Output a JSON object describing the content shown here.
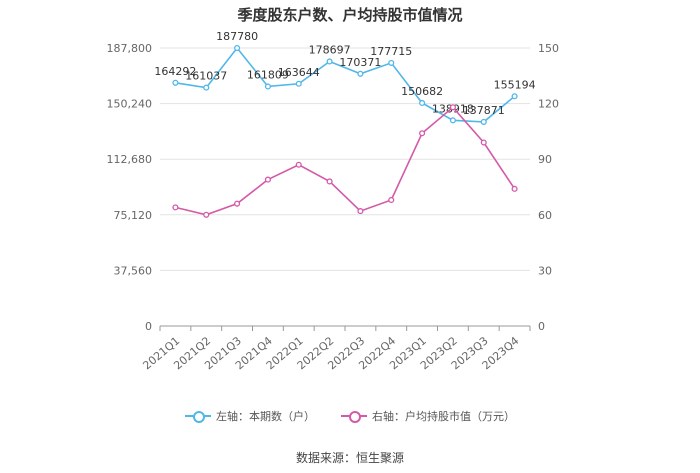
{
  "title": "季度股东户数、户均持股市值情况",
  "source": "数据来源：恒生聚源",
  "colors": {
    "left_series": "#4fb7ea",
    "right_series": "#d45aa8",
    "axis": "#999999",
    "grid": "#e3e3e3"
  },
  "chart_data": {
    "type": "line",
    "title": "季度股东户数、户均持股市值情况",
    "categories": [
      "2021Q1",
      "2021Q2",
      "2021Q3",
      "2021Q4",
      "2022Q1",
      "2022Q2",
      "2022Q3",
      "2022Q4",
      "2023Q1",
      "2023Q2",
      "2023Q3",
      "2023Q4"
    ],
    "left_axis": {
      "ylim": [
        0,
        187800
      ],
      "ticks": [
        0,
        37560,
        75120,
        112680,
        150240,
        187800
      ],
      "tick_labels": [
        "0",
        "37,560",
        "75,120",
        "112,680",
        "150,240",
        "187,800"
      ]
    },
    "right_axis": {
      "ylim": [
        0,
        150
      ],
      "ticks": [
        0,
        30,
        60,
        90,
        120,
        150
      ],
      "tick_labels": [
        "0",
        "30",
        "60",
        "90",
        "120",
        "150"
      ]
    },
    "series": [
      {
        "name": "左轴：本期数（户）",
        "axis": "left",
        "values": [
          164292,
          161037,
          187780,
          161809,
          163644,
          178697,
          170371,
          177715,
          150682,
          138918,
          137871,
          155194
        ],
        "data_labels": [
          "164292",
          "161037",
          "187780",
          "161809",
          "163644",
          "178697",
          "170371",
          "177715",
          "150682",
          "138918",
          "137871",
          "155194"
        ]
      },
      {
        "name": "右轴：户均持股市值（万元）",
        "axis": "right",
        "values": [
          64,
          60,
          66,
          79,
          87,
          78,
          62,
          68,
          104,
          118,
          99,
          74
        ]
      }
    ],
    "legend_position": "bottom",
    "grid": true
  }
}
